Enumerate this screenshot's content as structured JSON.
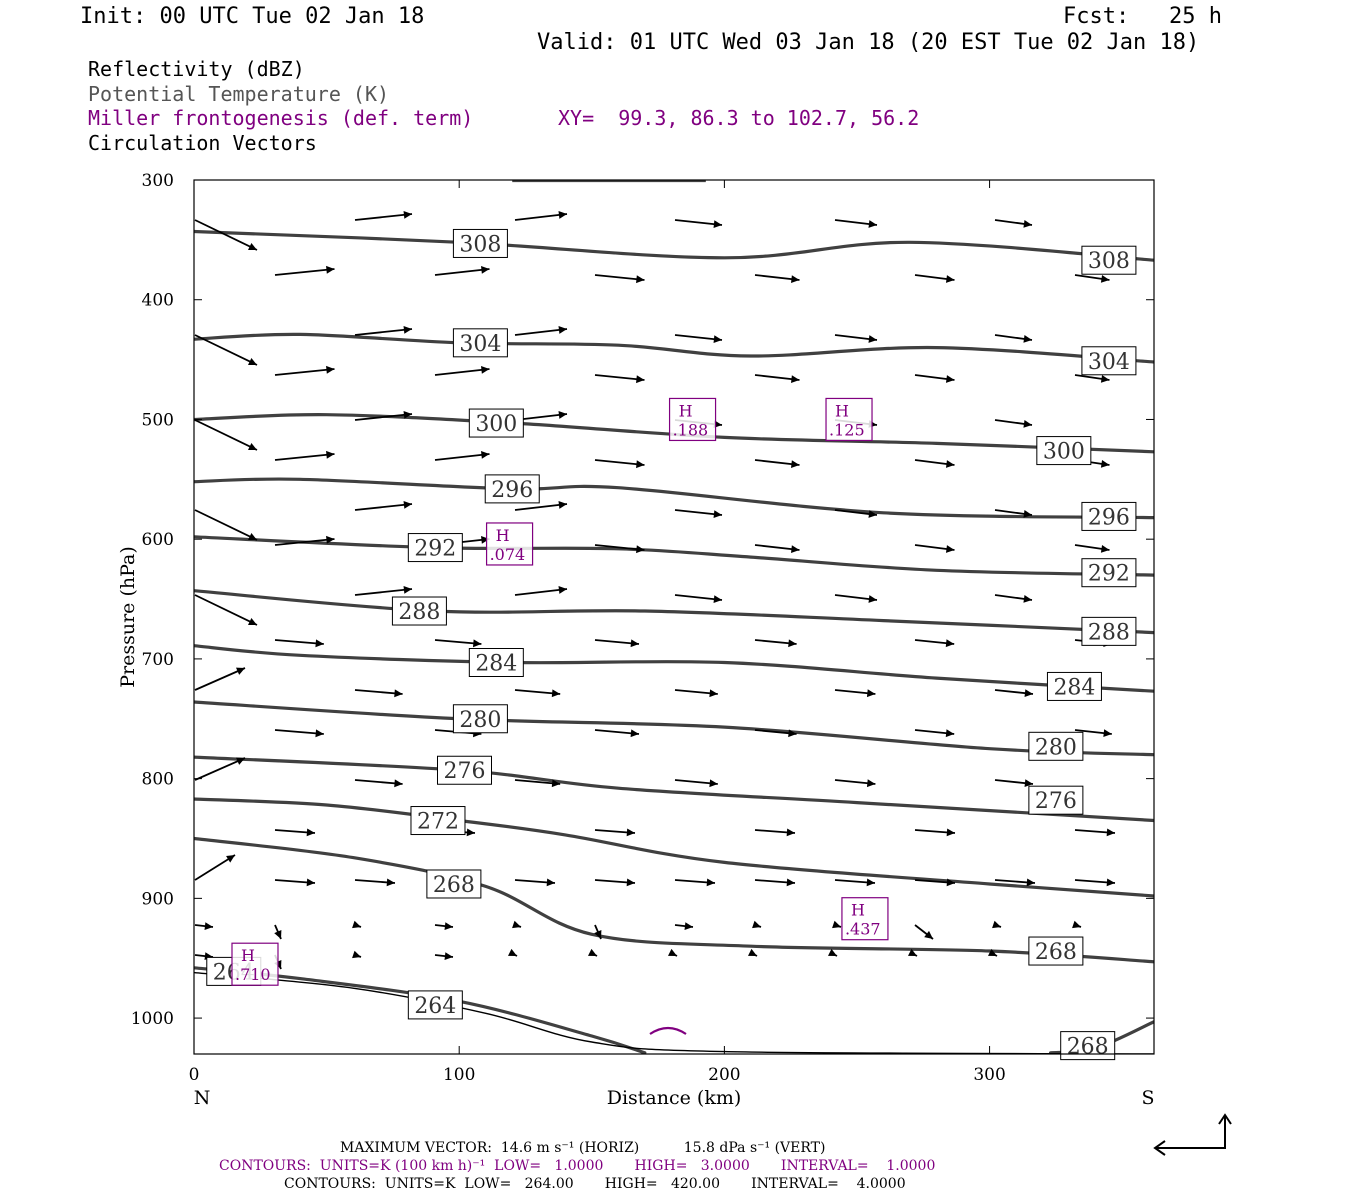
{
  "header": {
    "init": "Init: 00 UTC Tue 02 Jan 18",
    "fcst": "Fcst:   25 h",
    "valid": "Valid: 01 UTC Wed 03 Jan 18 (20 EST Tue 02 Jan 18)"
  },
  "legend": {
    "reflectivity": "Reflectivity (dBZ)",
    "theta": "Potential Temperature (K)",
    "frontogenesis": "Miller frontogenesis (def. term)",
    "xy": "XY=  99.3, 86.3 to 102.7, 56.2",
    "vectors": "Circulation Vectors"
  },
  "footer": {
    "max_vector": "MAXIMUM VECTOR:  14.6 m s⁻¹ (HORIZ)          15.8 dPa s⁻¹ (VERT)",
    "contours_purple": "CONTOURS:  UNITS=K (100 km h)⁻¹  LOW=   1.0000       HIGH=   3.0000       INTERVAL=    1.0000",
    "contours_black": "CONTOURS:  UNITS=K  LOW=   264.00       HIGH=   420.00       INTERVAL=    4.0000"
  },
  "colors": {
    "theta": "#404040",
    "frontogenesis": "#800080",
    "vector": "#000000"
  },
  "chart_data": {
    "type": "contour-cross-section",
    "xlabel": "Distance (km)",
    "ylabel": "Pressure (hPa)",
    "xlim": [
      0,
      362
    ],
    "ylim": [
      1030,
      300
    ],
    "x_ticks": [
      0,
      100,
      200,
      300
    ],
    "y_ticks": [
      300,
      400,
      500,
      600,
      700,
      800,
      900,
      1000
    ],
    "end_labels": {
      "left": "N",
      "right": "S"
    },
    "theta_contours": [
      {
        "value": "308",
        "points": [
          [
            0,
            343
          ],
          [
            100,
            352
          ],
          [
            200,
            365
          ],
          [
            270,
            352
          ],
          [
            362,
            367
          ]
        ],
        "labels": [
          [
            108,
            353
          ],
          [
            345,
            367
          ]
        ]
      },
      {
        "value": "304",
        "points": [
          [
            0,
            433
          ],
          [
            40,
            429
          ],
          [
            100,
            436
          ],
          [
            160,
            438
          ],
          [
            210,
            447
          ],
          [
            280,
            440
          ],
          [
            362,
            452
          ]
        ],
        "labels": [
          [
            108,
            436
          ],
          [
            345,
            451
          ]
        ]
      },
      {
        "value": "300",
        "points": [
          [
            0,
            500
          ],
          [
            50,
            496
          ],
          [
            120,
            503
          ],
          [
            200,
            515
          ],
          [
            280,
            520
          ],
          [
            362,
            527
          ]
        ],
        "labels": [
          [
            114,
            503
          ],
          [
            328,
            526
          ]
        ]
      },
      {
        "value": "296",
        "points": [
          [
            0,
            552
          ],
          [
            40,
            550
          ],
          [
            120,
            558
          ],
          [
            160,
            557
          ],
          [
            260,
            578
          ],
          [
            362,
            582
          ]
        ],
        "labels": [
          [
            120,
            558
          ],
          [
            345,
            581
          ]
        ]
      },
      {
        "value": "292",
        "points": [
          [
            0,
            598
          ],
          [
            90,
            607
          ],
          [
            160,
            608
          ],
          [
            210,
            615
          ],
          [
            280,
            626
          ],
          [
            362,
            630
          ]
        ],
        "labels": [
          [
            91,
            607
          ],
          [
            345,
            628
          ]
        ]
      },
      {
        "value": "288",
        "points": [
          [
            0,
            643
          ],
          [
            90,
            660
          ],
          [
            170,
            660
          ],
          [
            260,
            668
          ],
          [
            362,
            678
          ]
        ],
        "labels": [
          [
            85,
            660
          ],
          [
            345,
            677
          ]
        ]
      },
      {
        "value": "284",
        "points": [
          [
            0,
            689
          ],
          [
            40,
            697
          ],
          [
            120,
            703
          ],
          [
            200,
            703
          ],
          [
            280,
            716
          ],
          [
            362,
            727
          ]
        ],
        "labels": [
          [
            114,
            703
          ],
          [
            332,
            723
          ]
        ]
      },
      {
        "value": "280",
        "points": [
          [
            0,
            736
          ],
          [
            100,
            750
          ],
          [
            200,
            757
          ],
          [
            300,
            775
          ],
          [
            362,
            780
          ]
        ],
        "labels": [
          [
            108,
            750
          ],
          [
            325,
            773
          ]
        ]
      },
      {
        "value": "276",
        "points": [
          [
            0,
            782
          ],
          [
            100,
            793
          ],
          [
            160,
            808
          ],
          [
            250,
            820
          ],
          [
            362,
            835
          ]
        ],
        "labels": [
          [
            102,
            793
          ],
          [
            325,
            818
          ]
        ]
      },
      {
        "value": "272",
        "points": [
          [
            0,
            817
          ],
          [
            50,
            822
          ],
          [
            100,
            835
          ],
          [
            140,
            847
          ],
          [
            200,
            870
          ],
          [
            300,
            888
          ],
          [
            362,
            898
          ]
        ],
        "labels": [
          [
            92,
            835
          ]
        ]
      },
      {
        "value": "268",
        "points": [
          [
            0,
            850
          ],
          [
            60,
            866
          ],
          [
            110,
            890
          ],
          [
            150,
            930
          ],
          [
            210,
            940
          ],
          [
            300,
            944
          ],
          [
            362,
            953
          ]
        ],
        "labels": [
          [
            98,
            888
          ],
          [
            325,
            944
          ]
        ]
      },
      {
        "value": "264",
        "points": [
          [
            0,
            958
          ],
          [
            40,
            967
          ],
          [
            100,
            986
          ],
          [
            150,
            1015
          ],
          [
            170,
            1029
          ]
        ],
        "labels": [
          [
            15,
            961
          ],
          [
            91,
            989
          ]
        ]
      },
      {
        "value": "268",
        "points": [
          [
            323,
            1029
          ],
          [
            340,
            1025
          ],
          [
            362,
            1003
          ]
        ],
        "labels": [
          [
            337,
            1023
          ]
        ]
      }
    ],
    "frontogenesis_maxima": [
      {
        "label": "H",
        "value": ".188",
        "x": 188,
        "p": 500
      },
      {
        "label": "H",
        "value": ".125",
        "x": 247,
        "p": 500
      },
      {
        "label": "H",
        "value": ".074",
        "x": 119,
        "p": 604
      },
      {
        "label": "H",
        "value": ".437",
        "x": 253,
        "p": 917
      },
      {
        "label": "H",
        "value": ".710",
        "x": 23,
        "p": 955
      }
    ],
    "vector_reference": {
      "u": 14.6,
      "w": 15.8
    }
  }
}
